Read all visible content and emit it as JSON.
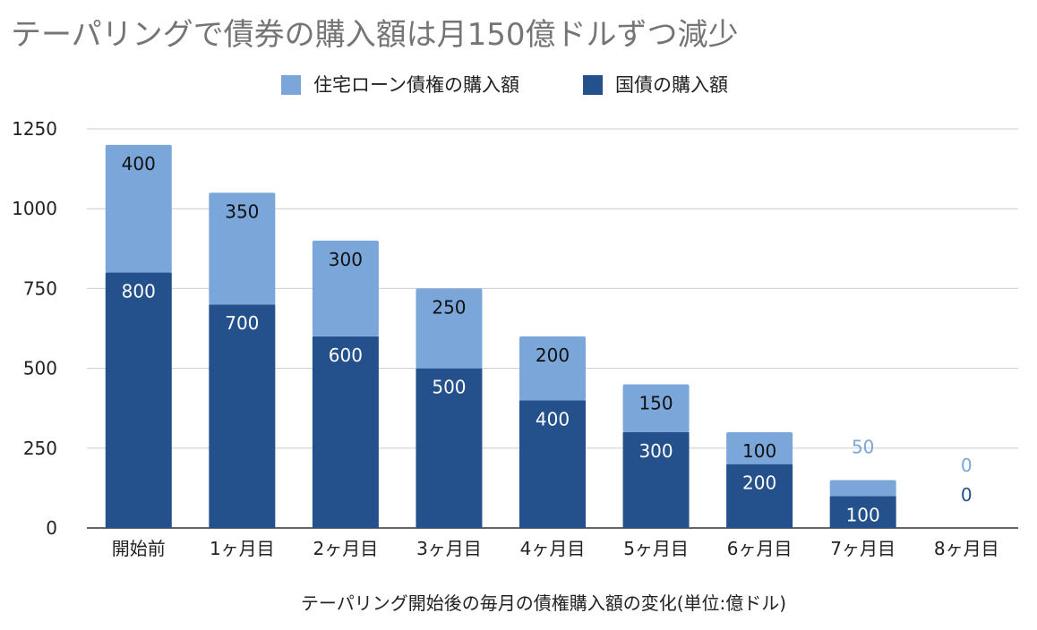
{
  "chart_data": {
    "type": "bar",
    "stacked": true,
    "title": "テーパリングで債券の購入額は月150億ドルずつ減少",
    "xlabel": "テーパリング開始後の毎月の債権購入額の変化(単位:億ドル)",
    "ylabel": "",
    "ylim": [
      0,
      1250
    ],
    "yticks": [
      "0",
      "250",
      "500",
      "750",
      "1000",
      "1250"
    ],
    "grid": true,
    "legend_position": "top",
    "categories": [
      "開始前",
      "1ヶ月目",
      "2ヶ月目",
      "3ヶ月目",
      "4ヶ月目",
      "5ヶ月目",
      "6ヶ月目",
      "7ヶ月目",
      "8ヶ月目"
    ],
    "series": [
      {
        "name": "国債の購入額",
        "color": "#24508c",
        "label_color": "#ffffff",
        "values": [
          800,
          700,
          600,
          500,
          400,
          300,
          200,
          100,
          0
        ]
      },
      {
        "name": "住宅ローン債権の購入額",
        "color": "#7aa6da",
        "label_color": "#111111",
        "values": [
          400,
          350,
          300,
          250,
          200,
          150,
          100,
          50,
          0
        ]
      }
    ]
  }
}
